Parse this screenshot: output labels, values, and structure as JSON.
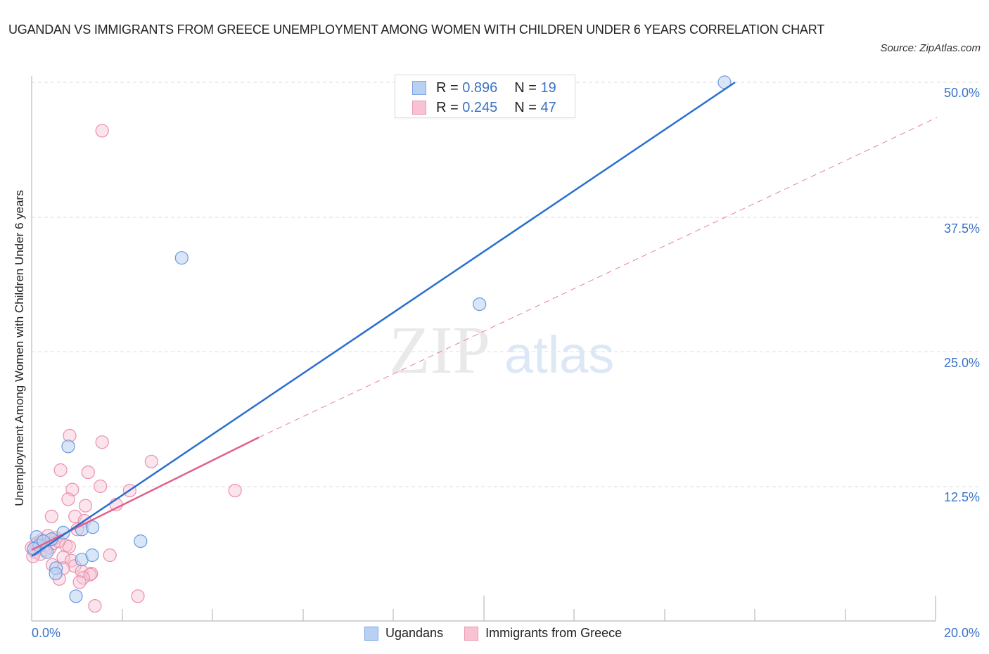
{
  "header": {
    "title": "UGANDAN VS IMMIGRANTS FROM GREECE UNEMPLOYMENT AMONG WOMEN WITH CHILDREN UNDER 6 YEARS CORRELATION CHART",
    "source": "Source: ZipAtlas.com"
  },
  "watermark": {
    "zip": "ZIP",
    "atlas": "atlas"
  },
  "stats_legend": {
    "rows": [
      {
        "r_label": "R =",
        "r_value": "0.896",
        "n_label": "N =",
        "n_value": "19",
        "color": "#b8d1f3"
      },
      {
        "r_label": "R =",
        "r_value": "0.245",
        "n_label": "N =",
        "n_value": "47",
        "color": "#f7c3d3"
      }
    ]
  },
  "axes": {
    "y_ticks": [
      "50.0%",
      "37.5%",
      "25.0%",
      "12.5%"
    ],
    "x_ticks": [
      "0.0%",
      "20.0%"
    ]
  },
  "bottom_legend": {
    "items": [
      {
        "label": "Ugandans",
        "color": "#b8d1f3"
      },
      {
        "label": "Immigrants from Greece",
        "color": "#f7c3d3"
      }
    ]
  },
  "chart_data": {
    "type": "scatter",
    "title": "UGANDAN VS IMMIGRANTS FROM GREECE UNEMPLOYMENT AMONG WOMEN WITH CHILDREN UNDER 6 YEARS CORRELATION CHART",
    "xlabel": "",
    "ylabel": "Unemployment Among Women with Children Under 6 years",
    "xlim": [
      0,
      20
    ],
    "ylim": [
      0,
      50
    ],
    "x_tick_labels": [
      "0.0%",
      "20.0%"
    ],
    "y_tick_labels": [
      "12.5%",
      "25.0%",
      "37.5%",
      "50.0%"
    ],
    "grid": true,
    "legend_position": "bottom",
    "series": [
      {
        "name": "Ugandans",
        "color": "#6a9be0",
        "R": 0.896,
        "N": 19,
        "trendline": {
          "x": [
            0.0,
            15.5
          ],
          "y": [
            6.0,
            49.5
          ]
        },
        "points": [
          [
            15.33,
            50.0
          ],
          [
            3.32,
            33.7
          ],
          [
            9.91,
            29.4
          ],
          [
            0.81,
            16.2
          ],
          [
            2.41,
            7.4
          ],
          [
            1.11,
            8.5
          ],
          [
            1.35,
            8.7
          ],
          [
            0.7,
            8.2
          ],
          [
            0.44,
            7.6
          ],
          [
            0.11,
            7.8
          ],
          [
            0.17,
            7.0
          ],
          [
            0.34,
            6.4
          ],
          [
            0.54,
            4.9
          ],
          [
            0.53,
            4.4
          ],
          [
            1.11,
            5.7
          ],
          [
            1.34,
            6.1
          ],
          [
            0.98,
            2.3
          ],
          [
            0.05,
            6.7
          ],
          [
            0.26,
            7.4
          ]
        ]
      },
      {
        "name": "Immigrants from Greece",
        "color": "#ee8fab",
        "R": 0.245,
        "N": 47,
        "trendline": {
          "x": [
            0.0,
            5.0
          ],
          "y": [
            6.6,
            17.0
          ]
        },
        "trendline_extrapolated": {
          "x": [
            5.0,
            20.0
          ],
          "y": [
            17.0,
            46.5
          ]
        },
        "points": [
          [
            1.56,
            45.5
          ],
          [
            0.84,
            17.2
          ],
          [
            1.56,
            16.6
          ],
          [
            2.65,
            14.8
          ],
          [
            0.64,
            14.0
          ],
          [
            1.25,
            13.8
          ],
          [
            1.52,
            12.5
          ],
          [
            0.9,
            12.2
          ],
          [
            2.17,
            12.1
          ],
          [
            4.5,
            12.1
          ],
          [
            0.81,
            11.3
          ],
          [
            1.19,
            10.7
          ],
          [
            1.87,
            10.8
          ],
          [
            0.44,
            9.7
          ],
          [
            0.96,
            9.7
          ],
          [
            1.17,
            9.3
          ],
          [
            1.01,
            8.5
          ],
          [
            0.36,
            7.9
          ],
          [
            0.53,
            7.7
          ],
          [
            0.14,
            7.3
          ],
          [
            0.28,
            7.0
          ],
          [
            0.41,
            6.8
          ],
          [
            0.07,
            6.4
          ],
          [
            0.19,
            6.2
          ],
          [
            0.03,
            6.0
          ],
          [
            0.76,
            7.0
          ],
          [
            0.83,
            6.9
          ],
          [
            1.73,
            6.1
          ],
          [
            0.7,
            5.9
          ],
          [
            0.88,
            5.6
          ],
          [
            0.46,
            5.2
          ],
          [
            0.95,
            5.1
          ],
          [
            0.7,
            4.9
          ],
          [
            1.11,
            4.6
          ],
          [
            1.32,
            4.4
          ],
          [
            1.29,
            4.3
          ],
          [
            1.14,
            4.0
          ],
          [
            0.61,
            3.9
          ],
          [
            1.06,
            3.6
          ],
          [
            2.35,
            2.3
          ],
          [
            1.4,
            1.4
          ],
          [
            0.22,
            7.5
          ],
          [
            0.31,
            6.6
          ],
          [
            0.1,
            7.1
          ],
          [
            0.48,
            7.2
          ],
          [
            0.6,
            7.4
          ],
          [
            0.0,
            6.8
          ]
        ]
      }
    ]
  }
}
